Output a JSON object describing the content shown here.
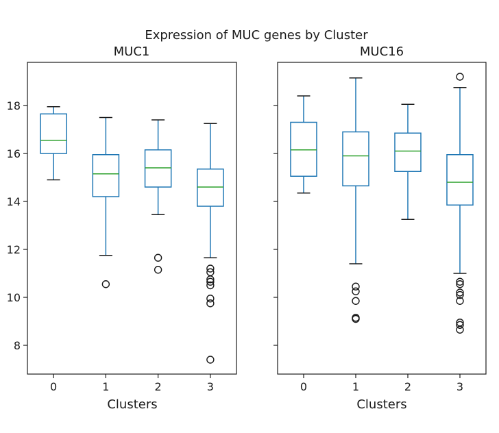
{
  "figure_title": "Expression of MUC genes by Cluster",
  "chart_data": [
    {
      "type": "box",
      "title": "MUC1",
      "xlabel": "Clusters",
      "ylabel": "",
      "ylim": [
        6.8,
        19.8
      ],
      "yticks": [
        8,
        10,
        12,
        14,
        16,
        18
      ],
      "categories": [
        "0",
        "1",
        "2",
        "3"
      ],
      "boxes": [
        {
          "category": "0",
          "whisker_low": 14.9,
          "q1": 16.0,
          "median": 16.55,
          "q3": 17.65,
          "whisker_high": 17.95,
          "outliers": []
        },
        {
          "category": "1",
          "whisker_low": 11.75,
          "q1": 14.2,
          "median": 15.15,
          "q3": 15.95,
          "whisker_high": 17.5,
          "outliers": [
            10.55
          ]
        },
        {
          "category": "2",
          "whisker_low": 13.45,
          "q1": 14.6,
          "median": 15.4,
          "q3": 16.15,
          "whisker_high": 17.4,
          "outliers": [
            11.65,
            11.15
          ]
        },
        {
          "category": "3",
          "whisker_low": 11.65,
          "q1": 13.8,
          "median": 14.6,
          "q3": 15.35,
          "whisker_high": 17.25,
          "outliers": [
            11.2,
            11.05,
            10.75,
            10.65,
            10.5,
            9.95,
            9.75,
            7.4
          ]
        }
      ]
    },
    {
      "type": "box",
      "title": "MUC16",
      "xlabel": "Clusters",
      "ylabel": "",
      "ylim": [
        6.8,
        19.8
      ],
      "yticks": [
        8,
        10,
        12,
        14,
        16,
        18
      ],
      "shared_y": true,
      "categories": [
        "0",
        "1",
        "2",
        "3"
      ],
      "boxes": [
        {
          "category": "0",
          "whisker_low": 14.35,
          "q1": 15.05,
          "median": 16.15,
          "q3": 17.3,
          "whisker_high": 18.4,
          "outliers": []
        },
        {
          "category": "1",
          "whisker_low": 11.4,
          "q1": 14.65,
          "median": 15.9,
          "q3": 16.9,
          "whisker_high": 19.15,
          "outliers": [
            10.45,
            10.25,
            9.85,
            9.15,
            9.1
          ]
        },
        {
          "category": "2",
          "whisker_low": 13.25,
          "q1": 15.25,
          "median": 16.1,
          "q3": 16.85,
          "whisker_high": 18.05,
          "outliers": []
        },
        {
          "category": "3",
          "whisker_low": 11.0,
          "q1": 13.85,
          "median": 14.8,
          "q3": 15.95,
          "whisker_high": 18.75,
          "outliers": [
            19.2,
            10.65,
            10.55,
            10.2,
            10.1,
            9.85,
            8.95,
            8.85,
            8.65
          ]
        }
      ]
    }
  ],
  "colors": {
    "box": "#1f77b4",
    "median": "#2ca02c",
    "whisker_cap": "#1a1a1a",
    "outlier": "#1a1a1a",
    "axes": "#1a1a1a"
  }
}
